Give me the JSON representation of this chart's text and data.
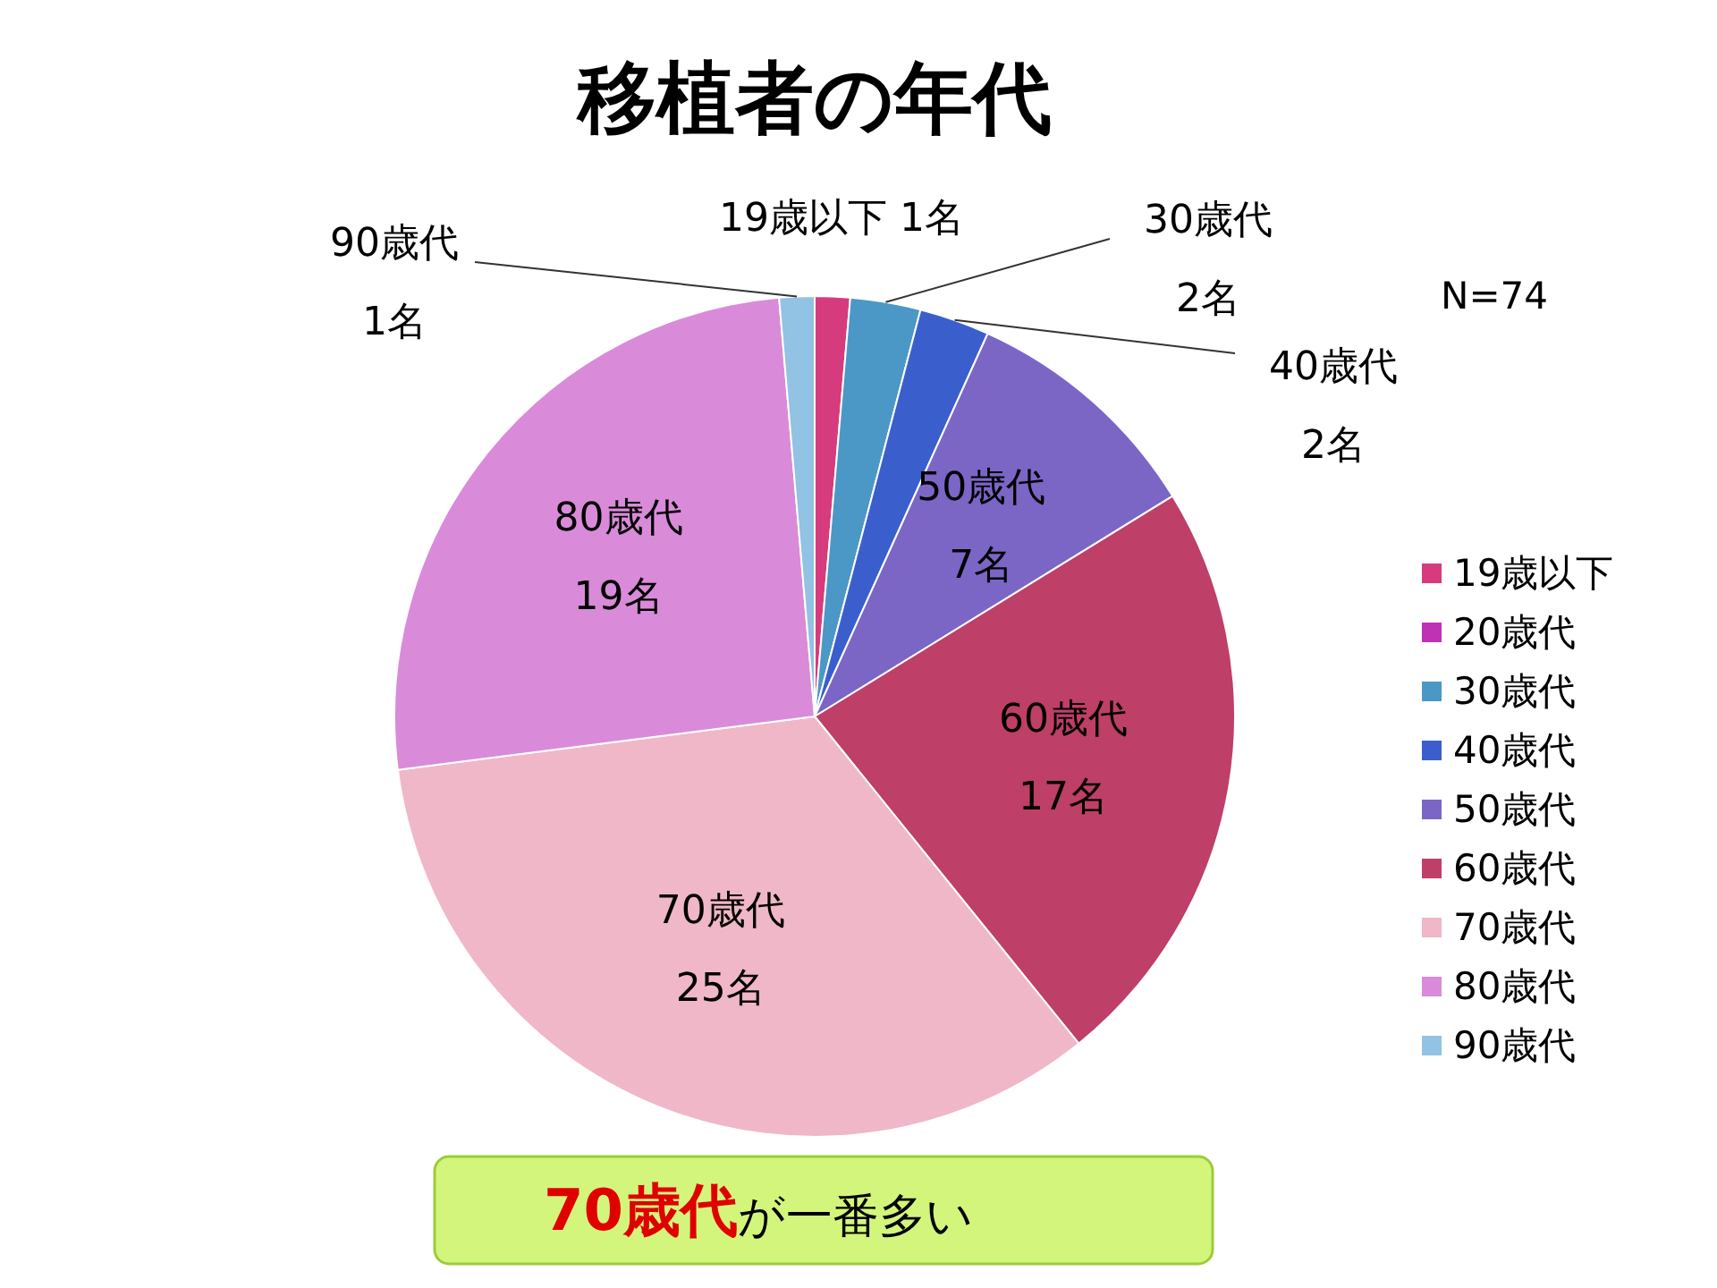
{
  "chart_data": {
    "type": "pie",
    "title": "移植者の年代",
    "categories": [
      "19歳以下",
      "20歳代",
      "30歳代",
      "40歳代",
      "50歳代",
      "60歳代",
      "70歳代",
      "80歳代",
      "90歳代"
    ],
    "values": [
      1,
      0,
      2,
      2,
      7,
      17,
      25,
      19,
      1
    ],
    "colors": [
      "#d63b7e",
      "#c032b4",
      "#4b98c6",
      "#3a5fcd",
      "#7b66c6",
      "#be3f68",
      "#f0b7c8",
      "#d98bd9",
      "#92c2e4"
    ],
    "value_labels": [
      "19歳以下 1名",
      null,
      "30歳代\n2名",
      "40歳代\n2名",
      "50歳代\n7名",
      "60歳代\n17名",
      "70歳代\n25名",
      "80歳代\n19名",
      "90歳代\n1名"
    ],
    "legend": "right",
    "annotations": [
      "N=74",
      "70歳代",
      "が一番多い"
    ]
  }
}
